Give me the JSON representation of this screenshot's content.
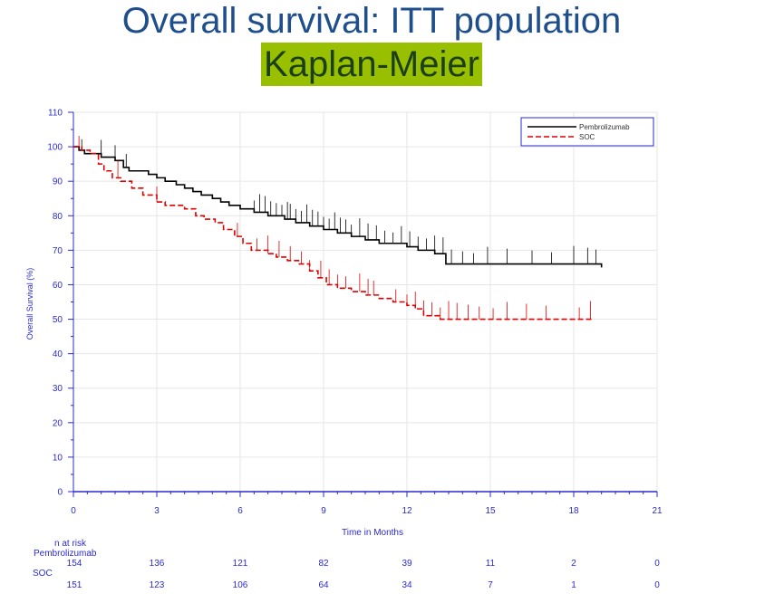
{
  "slide": {
    "title": "Overall survival: ITT population",
    "subtitle": "Kaplan-Meier",
    "colors": {
      "title": "#1f4e8c",
      "highlight": "#99c000",
      "axis": "#2a2ad0",
      "pembro": "#000000",
      "soc": "#e00000"
    }
  },
  "chart_data": {
    "type": "line",
    "xlabel": "Time in Months",
    "ylabel": "Overall Survival (%)",
    "xlim": [
      0,
      21
    ],
    "ylim": [
      0,
      110
    ],
    "xticks": [
      0,
      3,
      6,
      9,
      12,
      15,
      18,
      21
    ],
    "yticks": [
      0,
      10,
      20,
      30,
      40,
      50,
      60,
      70,
      80,
      90,
      100,
      110
    ],
    "grid": true,
    "legend_position": "top-right",
    "series": [
      {
        "name": "Pembrolizumab",
        "color": "#000000",
        "dash": "solid",
        "x": [
          0,
          0.2,
          0.4,
          1.0,
          1.5,
          1.8,
          2.0,
          2.7,
          3.0,
          3.3,
          3.7,
          4.0,
          4.3,
          4.6,
          5.0,
          5.3,
          5.6,
          6.0,
          6.5,
          7.0,
          7.6,
          8.0,
          8.5,
          9.0,
          9.5,
          10.0,
          10.5,
          11.0,
          12.0,
          12.4,
          13.0,
          13.4,
          19.0
        ],
        "y": [
          100,
          99,
          98,
          97,
          96,
          94,
          93,
          92,
          91,
          90,
          89,
          88,
          87,
          86,
          85,
          84,
          83,
          82,
          81,
          80,
          79,
          78,
          77,
          76,
          75,
          74,
          73,
          72,
          71,
          70,
          69,
          66,
          65
        ]
      },
      {
        "name": "SOC",
        "color": "#e00000",
        "dash": "dashed",
        "x": [
          0,
          0.3,
          0.6,
          0.9,
          1.1,
          1.4,
          1.7,
          2.1,
          2.5,
          3.0,
          3.3,
          4.0,
          4.4,
          4.7,
          5.1,
          5.4,
          5.8,
          6.1,
          6.4,
          7.0,
          7.3,
          7.7,
          8.1,
          8.5,
          8.8,
          9.1,
          9.5,
          10.0,
          10.5,
          11.0,
          11.5,
          12.0,
          12.3,
          12.6,
          13.2,
          18.7
        ],
        "y": [
          100,
          99,
          98,
          95,
          93,
          91,
          90,
          88,
          86,
          84,
          83,
          82,
          80,
          79,
          78,
          76,
          74,
          72,
          70,
          69,
          68,
          67,
          66,
          64,
          62,
          60,
          59,
          58,
          57,
          56,
          55,
          54,
          53,
          51,
          50,
          50
        ]
      }
    ],
    "censor_marks": {
      "Pembrolizumab": [
        0.3,
        1.0,
        1.5,
        1.9,
        6.5,
        6.7,
        6.9,
        7.1,
        7.3,
        7.5,
        7.7,
        7.8,
        8.0,
        8.2,
        8.4,
        8.6,
        8.8,
        9.0,
        9.2,
        9.4,
        9.6,
        9.8,
        10.0,
        10.3,
        10.6,
        10.9,
        11.2,
        11.5,
        11.8,
        12.1,
        12.4,
        12.7,
        13.0,
        13.3,
        13.6,
        14.0,
        14.4,
        14.9,
        15.6,
        16.5,
        17.2,
        18.0,
        18.5,
        18.8
      ],
      "SOC": [
        0.2,
        1.6,
        3.0,
        5.9,
        6.6,
        7.0,
        7.4,
        7.8,
        8.2,
        8.5,
        8.9,
        9.2,
        9.5,
        9.8,
        10.3,
        10.6,
        10.8,
        11.6,
        12.0,
        12.3,
        12.6,
        12.9,
        13.2,
        13.5,
        13.8,
        14.2,
        14.6,
        15.1,
        15.6,
        16.3,
        17.0,
        18.2,
        18.6
      ]
    },
    "risk_table": {
      "header": "n at risk",
      "rows": [
        {
          "label": "Pembrolizumab",
          "values": [
            "154",
            "136",
            "121",
            "82",
            "39",
            "11",
            "2",
            "0"
          ]
        },
        {
          "label": "SOC",
          "values": [
            "151",
            "123",
            "106",
            "64",
            "34",
            "7",
            "1",
            "0"
          ]
        }
      ]
    }
  }
}
